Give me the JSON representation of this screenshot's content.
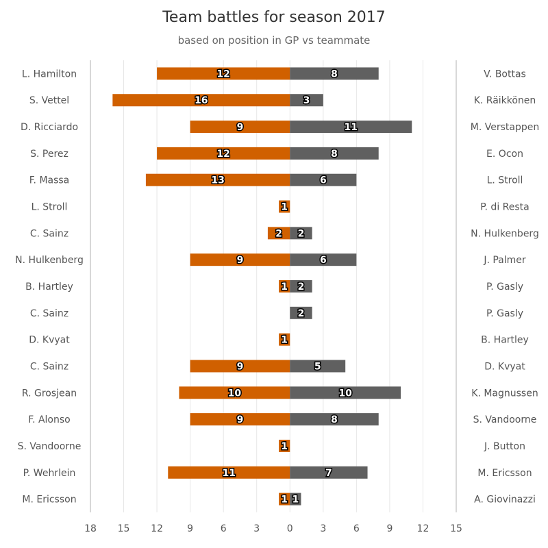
{
  "chart_data": {
    "type": "bar",
    "orientation": "horizontal-diverging",
    "title": "Team battles for season 2017",
    "subtitle": "based on position in GP vs teammate",
    "colors": {
      "left": "#d06000",
      "right": "#606060"
    },
    "xlim": [
      -18,
      15
    ],
    "x_ticks": [
      -18,
      -15,
      -12,
      -9,
      -6,
      -3,
      0,
      3,
      6,
      9,
      12,
      15
    ],
    "x_tick_labels": [
      "18",
      "15",
      "12",
      "9",
      "6",
      "3",
      "0",
      "3",
      "6",
      "9",
      "12",
      "15"
    ],
    "grid": true,
    "rows": [
      {
        "left_driver": "L. Hamilton",
        "left_value": 12,
        "right_driver": "V. Bottas",
        "right_value": 8
      },
      {
        "left_driver": "S. Vettel",
        "left_value": 16,
        "right_driver": "K. Räikkönen",
        "right_value": 3
      },
      {
        "left_driver": "D. Ricciardo",
        "left_value": 9,
        "right_driver": "M. Verstappen",
        "right_value": 11
      },
      {
        "left_driver": "S. Perez",
        "left_value": 12,
        "right_driver": "E. Ocon",
        "right_value": 8
      },
      {
        "left_driver": "F. Massa",
        "left_value": 13,
        "right_driver": "L. Stroll",
        "right_value": 6
      },
      {
        "left_driver": "L. Stroll",
        "left_value": 1,
        "right_driver": "P. di Resta",
        "right_value": 0
      },
      {
        "left_driver": "C. Sainz",
        "left_value": 2,
        "right_driver": "N. Hulkenberg",
        "right_value": 2
      },
      {
        "left_driver": "N. Hulkenberg",
        "left_value": 9,
        "right_driver": "J. Palmer",
        "right_value": 6
      },
      {
        "left_driver": "B. Hartley",
        "left_value": 1,
        "right_driver": "P. Gasly",
        "right_value": 2
      },
      {
        "left_driver": "C. Sainz",
        "left_value": 0,
        "right_driver": "P. Gasly",
        "right_value": 2
      },
      {
        "left_driver": "D. Kvyat",
        "left_value": 1,
        "right_driver": "B. Hartley",
        "right_value": 0
      },
      {
        "left_driver": "C. Sainz",
        "left_value": 9,
        "right_driver": "D. Kvyat",
        "right_value": 5
      },
      {
        "left_driver": "R. Grosjean",
        "left_value": 10,
        "right_driver": "K. Magnussen",
        "right_value": 10
      },
      {
        "left_driver": "F. Alonso",
        "left_value": 9,
        "right_driver": "S. Vandoorne",
        "right_value": 8
      },
      {
        "left_driver": "S. Vandoorne",
        "left_value": 1,
        "right_driver": "J. Button",
        "right_value": 0
      },
      {
        "left_driver": "P. Wehrlein",
        "left_value": 11,
        "right_driver": "M. Ericsson",
        "right_value": 7
      },
      {
        "left_driver": "M. Ericsson",
        "left_value": 1,
        "right_driver": "A. Giovinazzi",
        "right_value": 1
      }
    ]
  }
}
